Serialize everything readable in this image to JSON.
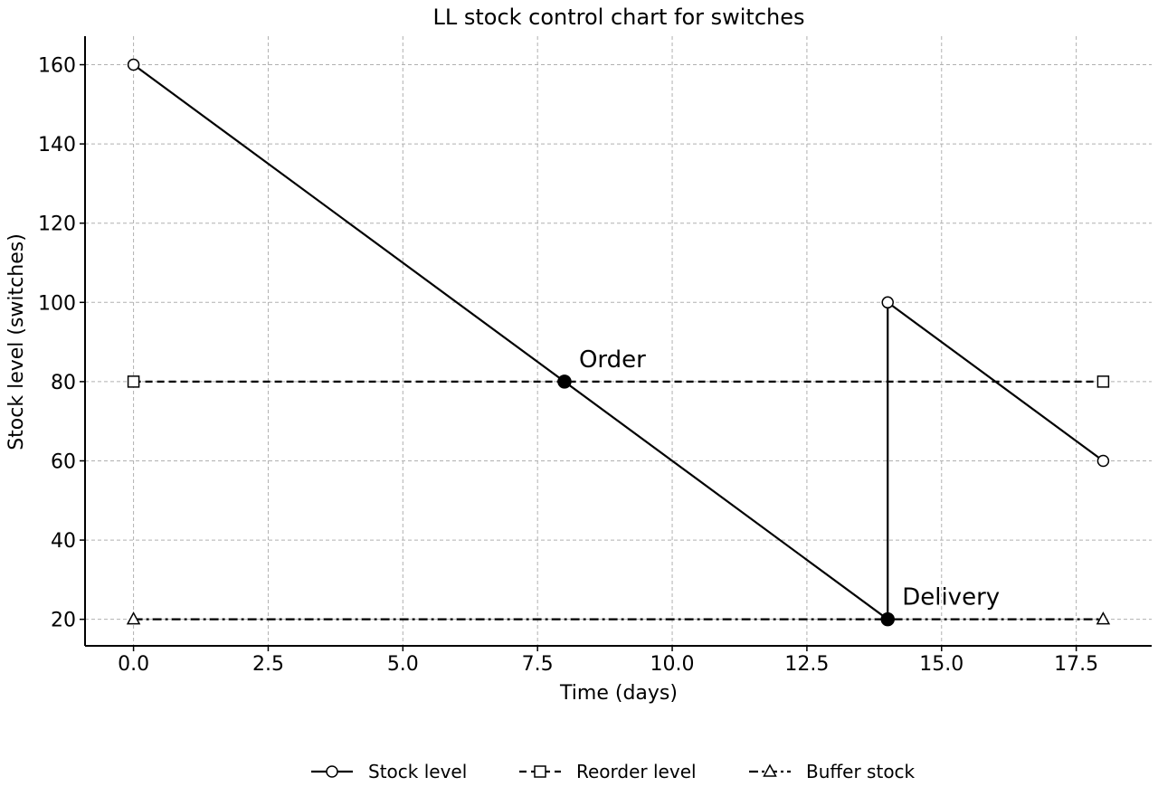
{
  "chart_data": {
    "type": "line",
    "title": "LL stock control chart for switches",
    "xlabel": "Time (days)",
    "ylabel": "Stock level (switches)",
    "xlim": [
      -0.9,
      18.9
    ],
    "ylim": [
      13.3,
      167.2
    ],
    "x_ticks": [
      0.0,
      2.5,
      5.0,
      7.5,
      10.0,
      12.5,
      15.0,
      17.5
    ],
    "x_tick_labels": [
      "0.0",
      "2.5",
      "5.0",
      "7.5",
      "10.0",
      "12.5",
      "15.0",
      "17.5"
    ],
    "y_ticks": [
      20,
      40,
      60,
      80,
      100,
      120,
      140,
      160
    ],
    "y_tick_labels": [
      "20",
      "40",
      "60",
      "80",
      "100",
      "120",
      "140",
      "160"
    ],
    "grid": true,
    "legend_position": "bottom-center",
    "series": [
      {
        "name": "Stock level",
        "style": "solid",
        "marker": "circle",
        "color": "#000000",
        "points": [
          [
            0,
            160
          ],
          [
            14,
            20
          ],
          [
            14,
            100
          ],
          [
            18,
            60
          ]
        ],
        "marker_points": [
          [
            0,
            160
          ],
          [
            14,
            100
          ],
          [
            18,
            60
          ]
        ]
      },
      {
        "name": "Reorder level",
        "style": "dashed",
        "marker": "square",
        "color": "#000000",
        "points": [
          [
            0,
            80
          ],
          [
            18,
            80
          ]
        ],
        "marker_points": [
          [
            0,
            80
          ],
          [
            18,
            80
          ]
        ]
      },
      {
        "name": "Buffer stock",
        "style": "dashdot",
        "marker": "triangle",
        "color": "#000000",
        "points": [
          [
            0,
            20
          ],
          [
            18,
            20
          ]
        ],
        "marker_points": [
          [
            0,
            20
          ],
          [
            18,
            20
          ]
        ]
      }
    ],
    "events": [
      {
        "label": "Order",
        "x": 8,
        "y": 80
      },
      {
        "label": "Delivery",
        "x": 14,
        "y": 20
      }
    ]
  }
}
